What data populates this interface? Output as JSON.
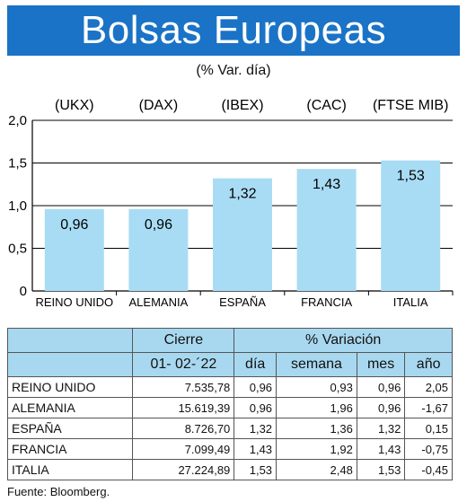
{
  "title": "Bolsas Europeas",
  "subtitle": "(% Var. día)",
  "chart_data": {
    "type": "bar",
    "categories": [
      "REINO UNIDO",
      "ALEMANIA",
      "ESPAÑA",
      "FRANCIA",
      "ITALIA"
    ],
    "index_labels": [
      "(UKX)",
      "(DAX)",
      "(IBEX)",
      "(CAC)",
      "(FTSE MIB)"
    ],
    "values": [
      0.96,
      0.96,
      1.32,
      1.43,
      1.53
    ],
    "value_labels": [
      "0,96",
      "0,96",
      "1,32",
      "1,43",
      "1,53"
    ],
    "y_ticks": [
      "0",
      "0,5",
      "1,0",
      "1,5",
      "2,0"
    ],
    "ylim": [
      0,
      2
    ],
    "bar_color": "#a8dcf4",
    "grid": true
  },
  "table": {
    "group_headers": [
      "Cierre",
      "% Variación"
    ],
    "column_headers": [
      "01- 02-´22",
      "día",
      "semana",
      "mes",
      "año"
    ],
    "rows": [
      {
        "name": "REINO UNIDO",
        "cierre": "7.535,78",
        "dia": "0,96",
        "semana": "0,93",
        "mes": "0,96",
        "ano": "2,05"
      },
      {
        "name": "ALEMANIA",
        "cierre": "15.619,39",
        "dia": "0,96",
        "semana": "1,96",
        "mes": "0,96",
        "ano": "-1,67"
      },
      {
        "name": "ESPAÑA",
        "cierre": "8.726,70",
        "dia": "1,32",
        "semana": "1,36",
        "mes": "1,32",
        "ano": "0,15"
      },
      {
        "name": "FRANCIA",
        "cierre": "7.099,49",
        "dia": "1,43",
        "semana": "1,92",
        "mes": "1,43",
        "ano": "-0,75"
      },
      {
        "name": "ITALIA",
        "cierre": "27.224,89",
        "dia": "1,53",
        "semana": "2,48",
        "mes": "1,53",
        "ano": "-0,45"
      }
    ]
  },
  "source": "Fuente: Bloomberg.",
  "colors": {
    "title_bg": "#1a73c6",
    "header_bg": "#a8d8f0"
  }
}
